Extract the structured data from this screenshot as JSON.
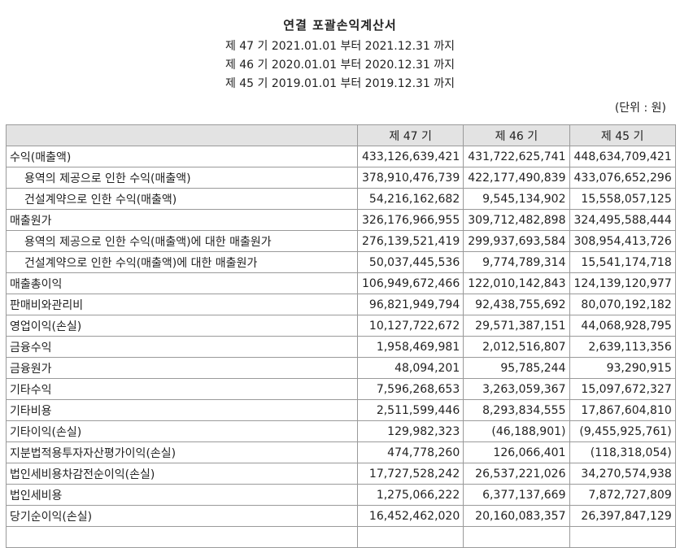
{
  "document": {
    "title": "연결 포괄손익계산서",
    "periods": [
      "제 47 기 2021.01.01 부터 2021.12.31 까지",
      "제 46 기 2020.01.01 부터 2020.12.31 까지",
      "제 45 기 2019.01.01 부터 2019.12.31 까지"
    ],
    "unit": "(단위 : 원)"
  },
  "table": {
    "headers": [
      "",
      "제 47 기",
      "제 46 기",
      "제 45 기"
    ],
    "rows": [
      {
        "label": "수익(매출액)",
        "indent": false,
        "values": [
          "433,126,639,421",
          "431,722,625,741",
          "448,634,709,421"
        ]
      },
      {
        "label": "용역의 제공으로 인한 수익(매출액)",
        "indent": true,
        "values": [
          "378,910,476,739",
          "422,177,490,839",
          "433,076,652,296"
        ]
      },
      {
        "label": "건설계약으로 인한 수익(매출액)",
        "indent": true,
        "values": [
          "54,216,162,682",
          "9,545,134,902",
          "15,558,057,125"
        ]
      },
      {
        "label": "매출원가",
        "indent": false,
        "values": [
          "326,176,966,955",
          "309,712,482,898",
          "324,495,588,444"
        ]
      },
      {
        "label": "용역의 제공으로 인한 수익(매출액)에 대한 매출원가",
        "indent": true,
        "values": [
          "276,139,521,419",
          "299,937,693,584",
          "308,954,413,726"
        ]
      },
      {
        "label": "건설계약으로 인한 수익(매출액)에 대한 매출원가",
        "indent": true,
        "values": [
          "50,037,445,536",
          "9,774,789,314",
          "15,541,174,718"
        ]
      },
      {
        "label": "매출총이익",
        "indent": false,
        "values": [
          "106,949,672,466",
          "122,010,142,843",
          "124,139,120,977"
        ]
      },
      {
        "label": "판매비와관리비",
        "indent": false,
        "values": [
          "96,821,949,794",
          "92,438,755,692",
          "80,070,192,182"
        ]
      },
      {
        "label": "영업이익(손실)",
        "indent": false,
        "values": [
          "10,127,722,672",
          "29,571,387,151",
          "44,068,928,795"
        ]
      },
      {
        "label": "금융수익",
        "indent": false,
        "values": [
          "1,958,469,981",
          "2,012,516,807",
          "2,639,113,356"
        ]
      },
      {
        "label": "금융원가",
        "indent": false,
        "values": [
          "48,094,201",
          "95,785,244",
          "93,290,915"
        ]
      },
      {
        "label": "기타수익",
        "indent": false,
        "values": [
          "7,596,268,653",
          "3,263,059,367",
          "15,097,672,327"
        ]
      },
      {
        "label": "기타비용",
        "indent": false,
        "values": [
          "2,511,599,446",
          "8,293,834,555",
          "17,867,604,810"
        ]
      },
      {
        "label": "기타이익(손실)",
        "indent": false,
        "values": [
          "129,982,323",
          "(46,188,901)",
          "(9,455,925,761)"
        ]
      },
      {
        "label": "지분법적용투자자산평가이익(손실)",
        "indent": false,
        "values": [
          "474,778,260",
          "126,066,401",
          "(118,318,054)"
        ]
      },
      {
        "label": "법인세비용차감전순이익(손실)",
        "indent": false,
        "values": [
          "17,727,528,242",
          "26,537,221,026",
          "34,270,574,938"
        ]
      },
      {
        "label": "법인세비용",
        "indent": false,
        "values": [
          "1,275,066,222",
          "6,377,137,669",
          "7,872,727,809"
        ]
      },
      {
        "label": "당기순이익(손실)",
        "indent": false,
        "values": [
          "16,452,462,020",
          "20,160,083,357",
          "26,397,847,129"
        ]
      },
      {
        "label": "",
        "indent": false,
        "values": [
          "",
          "",
          ""
        ]
      }
    ]
  }
}
